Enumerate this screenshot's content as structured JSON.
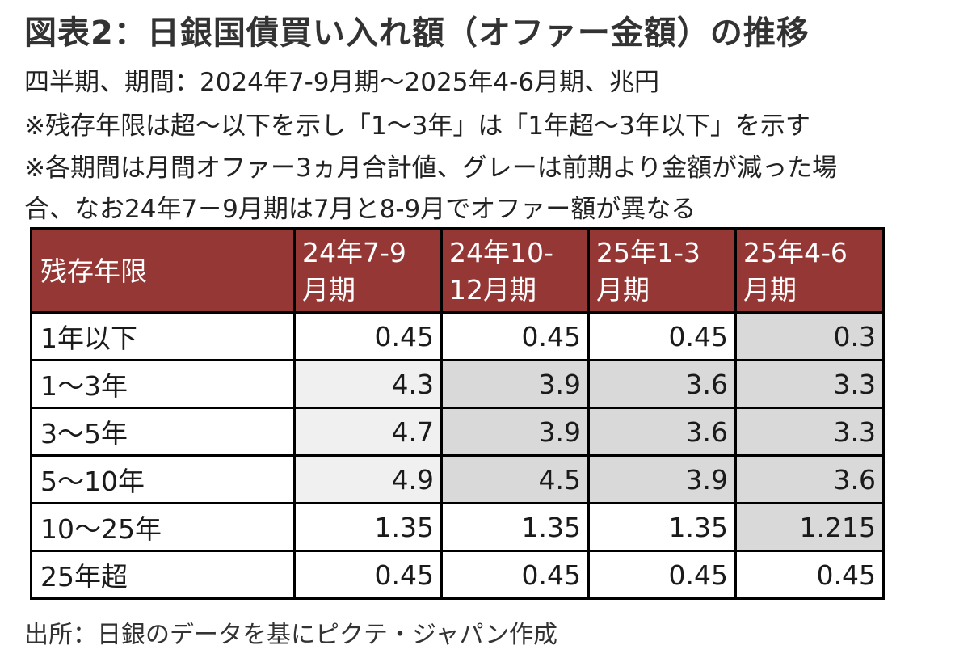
{
  "title": "図表2：日銀国債買い入れ額（オファー金額）の推移",
  "notes": [
    "四半期、期間：2024年7-9月期～2025年4-6月期、兆円",
    "※残存年限は超～以下を示し「1～3年」は「1年超～3年以下」を示す",
    "※各期間は月間オファー3ヵ月合計値、グレーは前期より金額が減った場",
    "合、なお24年7－9月期は7月と8-9月でオファー額が異なる"
  ],
  "source": "出所：日銀のデータを基にピクテ・ジャパン作成",
  "colors": {
    "header_bg": "#953735",
    "header_text": "#ffffff",
    "decrease_gray": "#d9d9d9",
    "light_gray": "#f0f0f0",
    "border": "#000000"
  },
  "chart_data": {
    "type": "table",
    "columns": [
      {
        "line1": "残存年限",
        "line2": ""
      },
      {
        "line1": "24年7-9",
        "line2": "月期"
      },
      {
        "line1": "24年10-",
        "line2": "12月期"
      },
      {
        "line1": "25年1-3",
        "line2": "月期"
      },
      {
        "line1": "25年4-6",
        "line2": "月期"
      }
    ],
    "rows": [
      {
        "label": "1年以下",
        "values": [
          "0.45",
          "0.45",
          "0.45",
          "0.3"
        ],
        "shading": [
          "none",
          "none",
          "none",
          "gray"
        ]
      },
      {
        "label": "1～3年",
        "values": [
          "4.3",
          "3.9",
          "3.6",
          "3.3"
        ],
        "shading": [
          "light",
          "gray",
          "gray",
          "gray"
        ]
      },
      {
        "label": "3～5年",
        "values": [
          "4.7",
          "3.9",
          "3.6",
          "3.3"
        ],
        "shading": [
          "light",
          "gray",
          "gray",
          "gray"
        ]
      },
      {
        "label": "5～10年",
        "values": [
          "4.9",
          "4.5",
          "3.9",
          "3.6"
        ],
        "shading": [
          "light",
          "gray",
          "gray",
          "gray"
        ]
      },
      {
        "label": "10～25年",
        "values": [
          "1.35",
          "1.35",
          "1.35",
          "1.215"
        ],
        "shading": [
          "none",
          "none",
          "none",
          "gray"
        ]
      },
      {
        "label": "25年超",
        "values": [
          "0.45",
          "0.45",
          "0.45",
          "0.45"
        ],
        "shading": [
          "none",
          "none",
          "none",
          "none"
        ]
      }
    ]
  }
}
